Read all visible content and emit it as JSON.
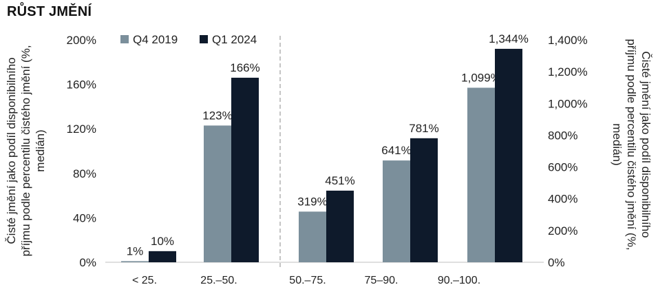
{
  "title": "RŮST JMĚNÍ",
  "chart_data": {
    "type": "bar",
    "categories": [
      "< 25.",
      "25.–50.",
      "50.–75.",
      "75–90.",
      "90.–100."
    ],
    "series": [
      {
        "name": "Q4 2019",
        "color": "#7b8f9b",
        "values": [
          1,
          123,
          319,
          641,
          1099
        ],
        "labels": [
          "1%",
          "123%",
          "319%",
          "641%",
          "1,099%"
        ]
      },
      {
        "name": "Q1 2024",
        "color": "#0e1a2b",
        "values": [
          10,
          166,
          451,
          781,
          1344
        ],
        "labels": [
          "10%",
          "166%",
          "451%",
          "781%",
          "1,344%"
        ]
      }
    ],
    "left_axis": {
      "ticks": [
        "0%",
        "40%",
        "80%",
        "120%",
        "160%",
        "200%"
      ],
      "tick_values": [
        0,
        40,
        80,
        120,
        160,
        200
      ],
      "ylim": [
        0,
        200
      ],
      "applies_to_categories": [
        0,
        1
      ],
      "label_line1": "Čisté jmění jako podíl disponibilního",
      "label_line2": "příjmu podle percentilu čistého jmění (%,",
      "label_line3": "medián)"
    },
    "right_axis": {
      "ticks": [
        "0%",
        "200%",
        "400%",
        "600%",
        "800%",
        "1,000%",
        "1,200%",
        "1,400%"
      ],
      "tick_values": [
        0,
        200,
        400,
        600,
        800,
        1000,
        1200,
        1400
      ],
      "ylim": [
        0,
        1400
      ],
      "applies_to_categories": [
        2,
        3,
        4
      ],
      "label_line1": "Čisté jmění jako podíl disponibilního",
      "label_line2": "příjmu podle percentilu čistého jmění (%,",
      "label_line3": "medián)"
    },
    "legend_position": "top-left",
    "divider": "dashed vertical line between 25.–50. and 50.–75.",
    "grid": false
  }
}
